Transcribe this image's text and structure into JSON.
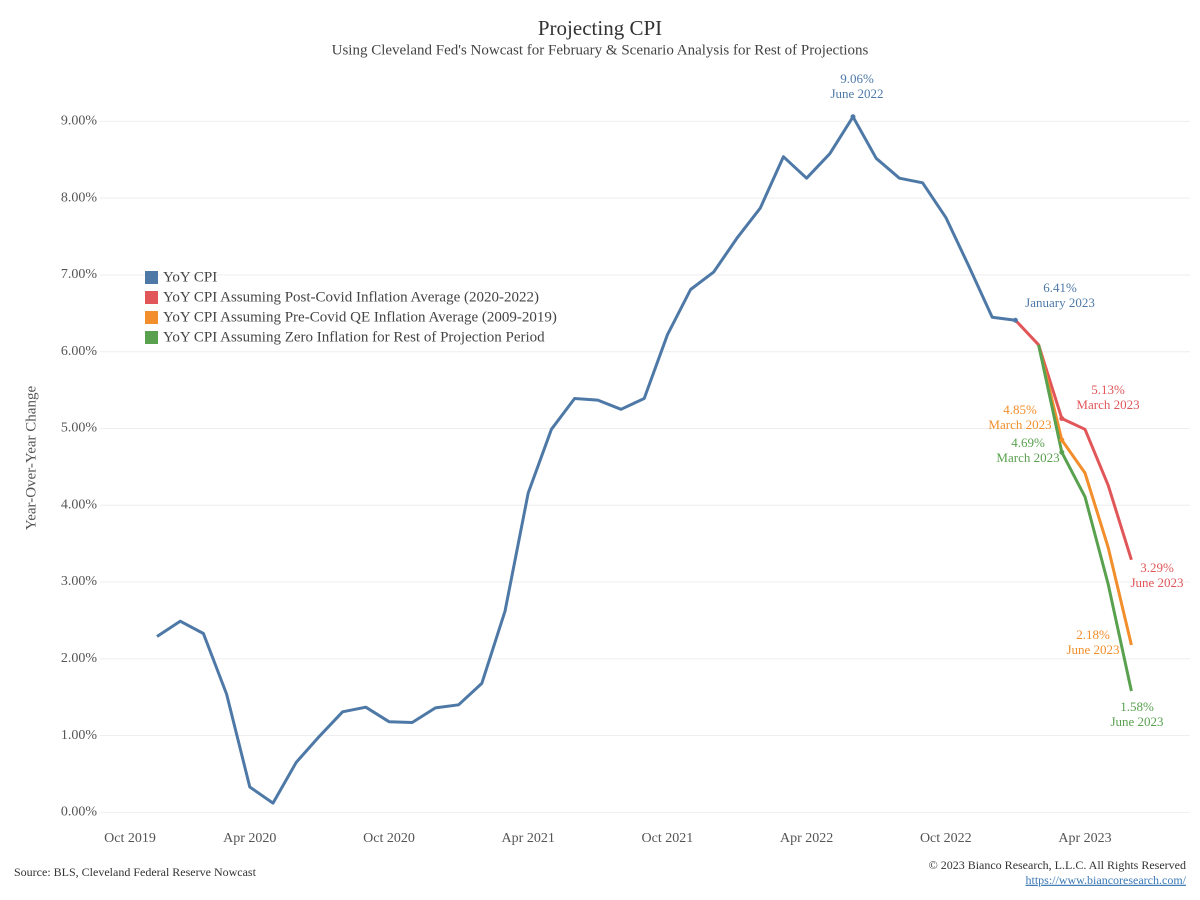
{
  "chart_data": {
    "type": "line",
    "title": "Projecting CPI",
    "subtitle": "Using Cleveland Fed's Nowcast for February & Scenario Analysis for Rest of Projections",
    "ylabel": "Year-Over-Year Change",
    "x": [
      "Oct 2019",
      "Nov 2019",
      "Dec 2019",
      "Jan 2020",
      "Feb 2020",
      "Mar 2020",
      "Apr 2020",
      "May 2020",
      "Jun 2020",
      "Jul 2020",
      "Aug 2020",
      "Sep 2020",
      "Oct 2020",
      "Nov 2020",
      "Dec 2020",
      "Jan 2021",
      "Feb 2021",
      "Mar 2021",
      "Apr 2021",
      "May 2021",
      "Jun 2021",
      "Jul 2021",
      "Aug 2021",
      "Sep 2021",
      "Oct 2021",
      "Nov 2021",
      "Dec 2021",
      "Jan 2022",
      "Feb 2022",
      "Mar 2022",
      "Apr 2022",
      "May 2022",
      "Jun 2022",
      "Jul 2022",
      "Aug 2022",
      "Sep 2022",
      "Oct 2022",
      "Nov 2022",
      "Dec 2022",
      "Jan 2023",
      "Feb 2023",
      "Mar 2023",
      "Apr 2023",
      "May 2023",
      "Jun 2023"
    ],
    "xticks": [
      "Oct 2019",
      "Apr 2020",
      "Oct 2020",
      "Apr 2021",
      "Oct 2021",
      "Apr 2022",
      "Oct 2022",
      "Apr 2023"
    ],
    "series": [
      {
        "name": "YoY CPI",
        "color": "#4e79a7",
        "values": [
          null,
          null,
          2.29,
          2.49,
          2.33,
          1.54,
          0.33,
          0.12,
          0.65,
          0.99,
          1.31,
          1.37,
          1.18,
          1.17,
          1.36,
          1.4,
          1.68,
          2.62,
          4.16,
          4.99,
          5.39,
          5.37,
          5.25,
          5.39,
          6.22,
          6.81,
          7.04,
          7.48,
          7.87,
          8.54,
          8.26,
          8.58,
          9.06,
          8.52,
          8.26,
          8.2,
          7.75,
          7.11,
          6.45,
          6.41,
          null,
          null,
          null,
          null,
          null
        ]
      },
      {
        "name": "YoY CPI Assuming Post-Covid Inflation Average (2020-2022)",
        "color": "#e15759",
        "values": [
          null,
          null,
          null,
          null,
          null,
          null,
          null,
          null,
          null,
          null,
          null,
          null,
          null,
          null,
          null,
          null,
          null,
          null,
          null,
          null,
          null,
          null,
          null,
          null,
          null,
          null,
          null,
          null,
          null,
          null,
          null,
          null,
          null,
          null,
          null,
          null,
          null,
          null,
          null,
          6.41,
          6.09,
          5.13,
          4.99,
          4.26,
          3.29
        ]
      },
      {
        "name": "YoY CPI Assuming Pre-Covid QE Inflation Average (2009-2019)",
        "color": "#f28e2b",
        "values": [
          null,
          null,
          null,
          null,
          null,
          null,
          null,
          null,
          null,
          null,
          null,
          null,
          null,
          null,
          null,
          null,
          null,
          null,
          null,
          null,
          null,
          null,
          null,
          null,
          null,
          null,
          null,
          null,
          null,
          null,
          null,
          null,
          null,
          null,
          null,
          null,
          null,
          null,
          null,
          null,
          6.09,
          4.85,
          4.42,
          3.45,
          2.18
        ]
      },
      {
        "name": "YoY CPI Assuming Zero Inflation for Rest of Projection Period",
        "color": "#59a14f",
        "values": [
          null,
          null,
          null,
          null,
          null,
          null,
          null,
          null,
          null,
          null,
          null,
          null,
          null,
          null,
          null,
          null,
          null,
          null,
          null,
          null,
          null,
          null,
          null,
          null,
          null,
          null,
          null,
          null,
          null,
          null,
          null,
          null,
          null,
          null,
          null,
          null,
          null,
          null,
          null,
          null,
          6.09,
          4.69,
          4.11,
          2.97,
          1.58
        ]
      }
    ],
    "ylim": [
      -0.1,
      9.8
    ],
    "yticks": [
      {
        "value": 0,
        "label": "0.00%"
      },
      {
        "value": 1,
        "label": "1.00%"
      },
      {
        "value": 2,
        "label": "2.00%"
      },
      {
        "value": 3,
        "label": "3.00%"
      },
      {
        "value": 4,
        "label": "4.00%"
      },
      {
        "value": 5,
        "label": "5.00%"
      },
      {
        "value": 6,
        "label": "6.00%"
      },
      {
        "value": 7,
        "label": "7.00%"
      },
      {
        "value": 8,
        "label": "8.00%"
      },
      {
        "value": 9,
        "label": "9.00%"
      }
    ],
    "grid": true,
    "legend": "left",
    "annotations": [
      {
        "value_label": "9.06%",
        "label": "June 2022",
        "color": "#4e79a7"
      },
      {
        "value_label": "6.41%",
        "label": "January 2023",
        "color": "#4e79a7"
      },
      {
        "value_label": "5.13%",
        "label": "March 2023",
        "color": "#e15759"
      },
      {
        "value_label": "4.85%",
        "label": "March 2023",
        "color": "#f28e2b"
      },
      {
        "value_label": "4.69%",
        "label": "March 2023",
        "color": "#59a14f"
      },
      {
        "value_label": "3.29%",
        "label": "June 2023",
        "color": "#e15759"
      },
      {
        "value_label": "2.18%",
        "label": "June 2023",
        "color": "#f28e2b"
      },
      {
        "value_label": "1.58%",
        "label": "June 2023",
        "color": "#59a14f"
      }
    ],
    "source": "Source: BLS, Cleveland Federal Reserve Nowcast",
    "copyright": "© 2023 Bianco Research, L.L.C. All Rights Reserved",
    "url": "https://www.biancoresearch.com/"
  }
}
